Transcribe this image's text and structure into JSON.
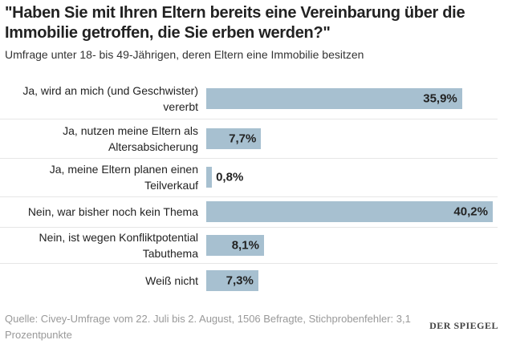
{
  "chart_data": {
    "type": "bar",
    "orientation": "horizontal",
    "title": "\"Haben Sie mit Ihren Eltern bereits eine Vereinbarung über die Immobilie getroffen, die Sie erben werden?\"",
    "subtitle": "Umfrage unter 18- bis 49-Jährigen, deren Eltern eine Immobilie besitzen",
    "categories": [
      "Ja, wird an mich (und Geschwister) vererbt",
      "Ja, nutzen meine Eltern als Altersabsicherung",
      "Ja, meine Eltern planen einen Teilverkauf",
      "Nein, war bisher noch kein Thema",
      "Nein, ist wegen Konfliktpotential Tabuthema",
      "Weiß nicht"
    ],
    "values": [
      35.9,
      7.7,
      0.8,
      40.2,
      8.1,
      7.3
    ],
    "value_labels": [
      "35,9%",
      "7,7%",
      "0,8%",
      "40,2%",
      "8,1%",
      "7,3%"
    ],
    "color": "#a7c0d0",
    "source": "Quelle: Civey-Umfrage vom 22. Juli bis 2. August, 1506 Befragte, Stichprobenfehler: 3,1 Prozentpunkte",
    "brand": "DER SPIEGEL"
  }
}
